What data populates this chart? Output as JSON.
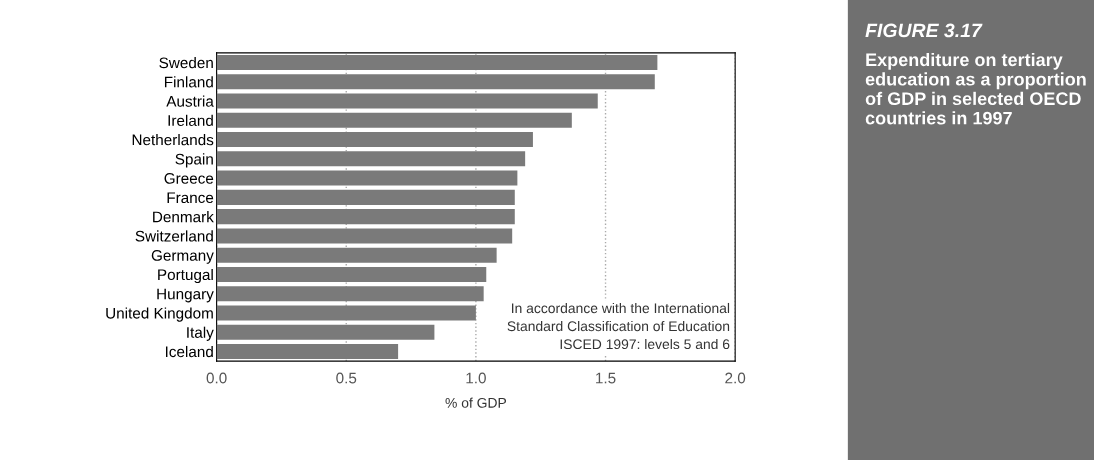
{
  "chart_data": {
    "type": "bar",
    "orientation": "horizontal",
    "title": "FIGURE 3.17",
    "subtitle": "Expenditure on tertiary education as a proportion of GDP in selected OECD countries in 1997",
    "categories": [
      "Sweden",
      "Finland",
      "Austria",
      "Ireland",
      "Netherlands",
      "Spain",
      "Greece",
      "France",
      "Denmark",
      "Switzerland",
      "Germany",
      "Portugal",
      "Hungary",
      "United Kingdom",
      "Italy",
      "Iceland"
    ],
    "values": [
      1.7,
      1.69,
      1.47,
      1.37,
      1.22,
      1.19,
      1.16,
      1.15,
      1.15,
      1.14,
      1.08,
      1.04,
      1.03,
      1.0,
      0.84,
      0.7
    ],
    "color": "#7a7a7a",
    "xlabel": "% of GDP",
    "xlim": [
      0,
      2
    ],
    "xticks": [
      {
        "value": 0,
        "label": "0.0"
      },
      {
        "value": 0.5,
        "label": "0.5"
      },
      {
        "value": 1,
        "label": "1.0"
      },
      {
        "value": 1.5,
        "label": "1.5"
      },
      {
        "value": 2,
        "label": "2.0"
      }
    ],
    "grid": "x",
    "legend": false,
    "annotations": [
      "In accordance with the International\nStandard Classification of Education\nISCED 1997: levels 5 and 6"
    ]
  }
}
